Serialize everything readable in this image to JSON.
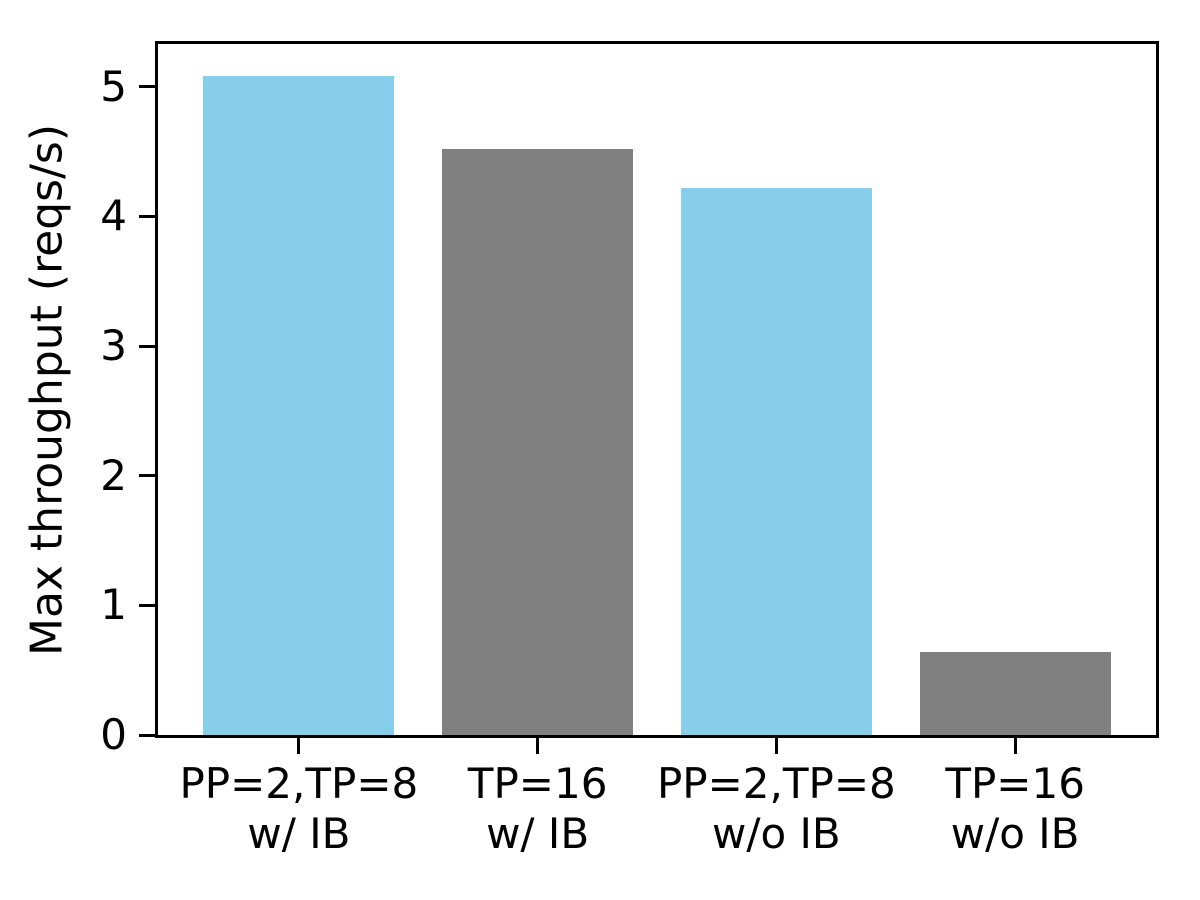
{
  "chart_data": {
    "type": "bar",
    "title": "",
    "xlabel": "",
    "ylabel": "Max throughput (reqs/s)",
    "categories": [
      [
        "PP=2,TP=8",
        "w/ IB"
      ],
      [
        "TP=16",
        "w/ IB"
      ],
      [
        "PP=2,TP=8",
        "w/o IB"
      ],
      [
        "TP=16",
        "w/o IB"
      ]
    ],
    "values": [
      5.08,
      4.52,
      4.22,
      0.64
    ],
    "bar_colors": [
      "#87CEEB",
      "#808080",
      "#87CEEB",
      "#808080"
    ],
    "yticks": [
      0,
      1,
      2,
      3,
      4,
      5
    ],
    "ytick_labels": [
      "0",
      "1",
      "2",
      "3",
      "4",
      "5"
    ],
    "ylim": [
      0,
      5.33
    ],
    "xlim": [
      -0.59,
      3.59
    ],
    "bar_width": 0.8,
    "grid": false,
    "legend": null,
    "spine_color": "#000000",
    "background_color": "#ffffff"
  }
}
